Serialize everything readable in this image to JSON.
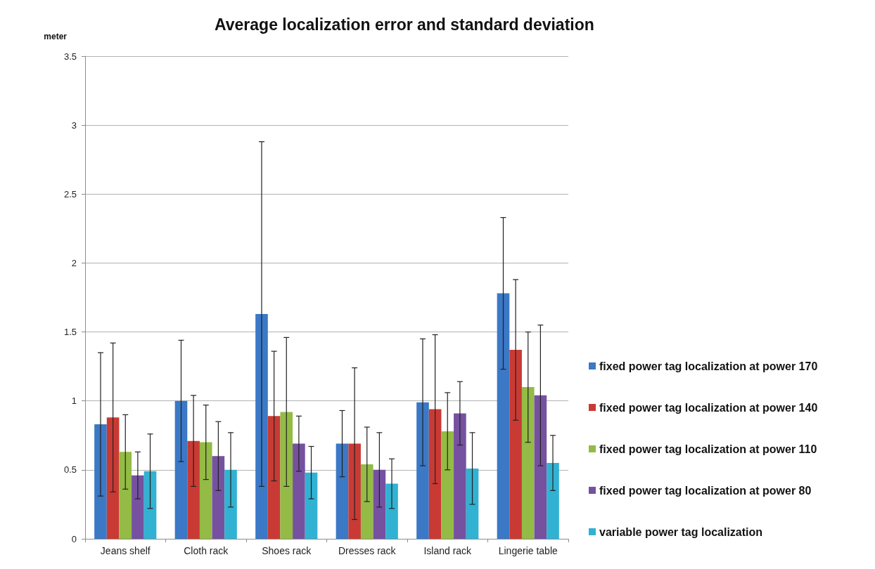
{
  "chart_data": {
    "type": "bar",
    "title": "Average localization error and standard deviation",
    "ylabel": "meter",
    "categories": [
      "Jeans shelf",
      "Cloth rack",
      "Shoes rack",
      "Dresses rack",
      "Island rack",
      "Lingerie table"
    ],
    "series": [
      {
        "name": "fixed power tag localization at power 170",
        "color": "#3b78c6",
        "values": [
          0.83,
          1.0,
          1.63,
          0.69,
          0.99,
          1.78
        ],
        "errors": [
          0.52,
          0.44,
          1.25,
          0.24,
          0.46,
          0.55
        ]
      },
      {
        "name": "fixed power tag localization at power 140",
        "color": "#c93a34",
        "values": [
          0.88,
          0.71,
          0.89,
          0.69,
          0.94,
          1.37
        ],
        "errors": [
          0.54,
          0.33,
          0.47,
          0.55,
          0.54,
          0.51
        ]
      },
      {
        "name": "fixed power tag localization at power 110",
        "color": "#93bb45",
        "values": [
          0.63,
          0.7,
          0.92,
          0.54,
          0.78,
          1.1
        ],
        "errors": [
          0.27,
          0.27,
          0.54,
          0.27,
          0.28,
          0.4
        ]
      },
      {
        "name": "fixed power tag localization at power 80",
        "color": "#7551a0",
        "values": [
          0.46,
          0.6,
          0.69,
          0.5,
          0.91,
          1.04
        ],
        "errors": [
          0.17,
          0.25,
          0.2,
          0.27,
          0.23,
          0.51
        ]
      },
      {
        "name": "variable power tag localization",
        "color": "#31b2d2",
        "values": [
          0.49,
          0.5,
          0.48,
          0.4,
          0.51,
          0.55
        ],
        "errors": [
          0.27,
          0.27,
          0.19,
          0.18,
          0.26,
          0.2
        ]
      }
    ],
    "ylim": [
      0,
      3.5
    ],
    "yticks": [
      0,
      0.5,
      1,
      1.5,
      2,
      2.5,
      3,
      3.5
    ],
    "grid": "y",
    "legend": "right"
  }
}
